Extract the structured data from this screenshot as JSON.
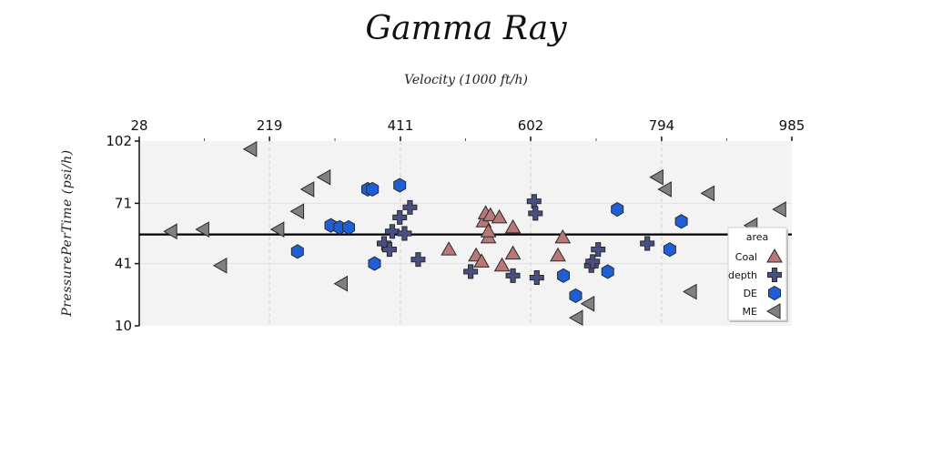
{
  "chart_data": {
    "type": "scatter",
    "title": "Gamma Ray",
    "xlabel": "Velocity (1000 ft/h)",
    "ylabel": "PressurePerTime (psi/h)",
    "xlim": [
      28,
      985
    ],
    "ylim": [
      10,
      102
    ],
    "xticks": [
      "28",
      "219",
      "411",
      "602",
      "794",
      "985"
    ],
    "yticks": [
      "10",
      "41",
      "71",
      "102"
    ],
    "grid": true,
    "hline": 55.5,
    "legend": {
      "title": "area",
      "placement": "right"
    },
    "series": [
      {
        "name": "Coal",
        "marker": "triangle",
        "color": "#b87878",
        "points": [
          [
            482,
            48
          ],
          [
            522,
            45
          ],
          [
            530,
            42
          ],
          [
            533,
            62
          ],
          [
            536,
            66
          ],
          [
            540,
            54
          ],
          [
            540,
            57
          ],
          [
            543,
            65
          ],
          [
            556,
            64
          ],
          [
            560,
            40
          ],
          [
            576,
            46
          ],
          [
            576,
            59
          ],
          [
            642,
            45
          ],
          [
            649,
            54
          ]
        ]
      },
      {
        "name": "depth",
        "marker": "plus",
        "color": "#4a4f82",
        "points": [
          [
            387,
            51
          ],
          [
            395,
            48
          ],
          [
            399,
            57
          ],
          [
            410,
            64
          ],
          [
            417,
            56
          ],
          [
            425,
            69
          ],
          [
            437,
            43
          ],
          [
            514,
            37
          ],
          [
            576,
            35
          ],
          [
            607,
            72
          ],
          [
            609,
            66
          ],
          [
            611,
            34
          ],
          [
            691,
            40
          ],
          [
            693,
            42
          ],
          [
            701,
            48
          ],
          [
            773,
            51
          ]
        ]
      },
      {
        "name": "DE",
        "marker": "hexagon",
        "color": "#1f5fd6",
        "points": [
          [
            260,
            47
          ],
          [
            309,
            60
          ],
          [
            322,
            59
          ],
          [
            335,
            59
          ],
          [
            363,
            78
          ],
          [
            370,
            78
          ],
          [
            373,
            41
          ],
          [
            410,
            80
          ],
          [
            650,
            35
          ],
          [
            668,
            25
          ],
          [
            715,
            37
          ],
          [
            729,
            68
          ],
          [
            806,
            48
          ],
          [
            823,
            62
          ]
        ]
      },
      {
        "name": "ME",
        "marker": "triangle-left",
        "color": "#808080",
        "points": [
          [
            75,
            57
          ],
          [
            122,
            58
          ],
          [
            148,
            40
          ],
          [
            192,
            98
          ],
          [
            232,
            58
          ],
          [
            261,
            67
          ],
          [
            276,
            78
          ],
          [
            300,
            84
          ],
          [
            325,
            31
          ],
          [
            670,
            14
          ],
          [
            687,
            21
          ],
          [
            788,
            84
          ],
          [
            800,
            78
          ],
          [
            837,
            27
          ],
          [
            863,
            76
          ],
          [
            926,
            60
          ],
          [
            928,
            42
          ],
          [
            968,
            68
          ]
        ]
      }
    ]
  }
}
